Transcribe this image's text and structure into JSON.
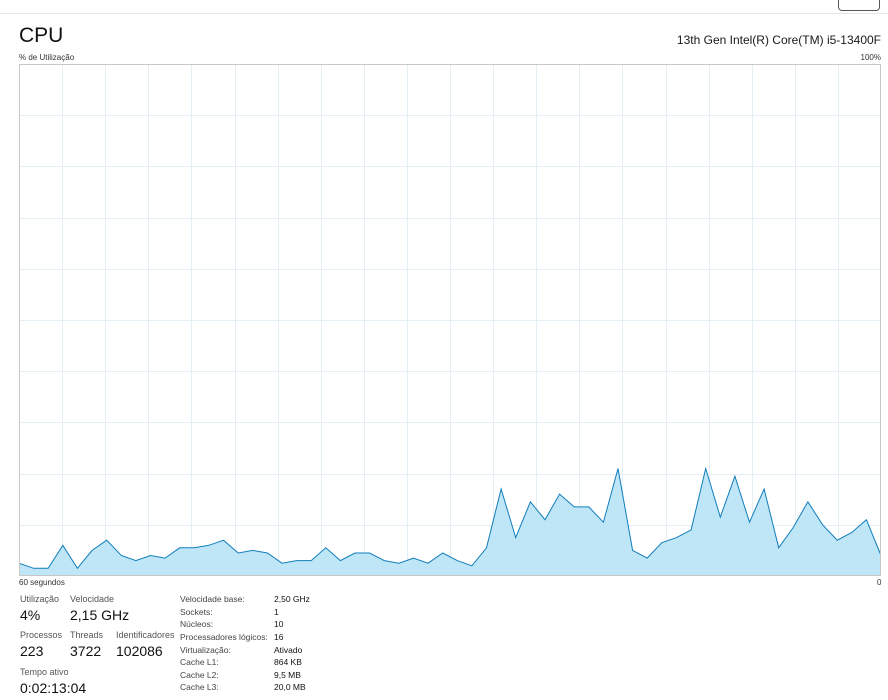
{
  "header": {
    "title": "CPU",
    "cpu_name": "13th Gen Intel(R) Core(TM) i5-13400F"
  },
  "graph": {
    "y_label": "% de Utilização",
    "y_max_label": "100%",
    "x_left_label": "60 segundos",
    "x_right_label": "0",
    "line_color": "#117dbb",
    "fill_color": "#bfe6f7",
    "grid_color": "#e3eef5",
    "border_color": "#c7c7c7"
  },
  "chart_data": {
    "type": "area",
    "ylim": [
      0,
      100
    ],
    "values": [
      2.5,
      1.5,
      1.5,
      6,
      1.5,
      5,
      7,
      4,
      3,
      4,
      3.5,
      5.5,
      5.5,
      6,
      7,
      4.5,
      5,
      4.5,
      2.5,
      3,
      3,
      5.5,
      3,
      4.5,
      4.5,
      3,
      2.5,
      3.5,
      2.5,
      4.5,
      3,
      2,
      5.5,
      17,
      7.5,
      14.5,
      11,
      16,
      13.5,
      13.5,
      10.5,
      21,
      5,
      3.5,
      6.5,
      7.5,
      9,
      21,
      11.5,
      19.5,
      10.5,
      17,
      5.5,
      9.5,
      14.5,
      10,
      7,
      8.5,
      11,
      4
    ]
  },
  "stats": {
    "utilizacao": {
      "label": "Utilização",
      "value": "4%"
    },
    "velocidade": {
      "label": "Velocidade",
      "value": "2,15 GHz"
    },
    "processos": {
      "label": "Processos",
      "value": "223"
    },
    "threads": {
      "label": "Threads",
      "value": "3722"
    },
    "identificadores": {
      "label": "Identificadores",
      "value": "102086"
    },
    "tempo_ativo": {
      "label": "Tempo ativo",
      "value": "0:02:13:04"
    }
  },
  "info": [
    {
      "label": "Velocidade base:",
      "value": "2,50 GHz"
    },
    {
      "label": "Sockets:",
      "value": "1"
    },
    {
      "label": "Núcleos:",
      "value": "10"
    },
    {
      "label": "Processadores lógicos:",
      "value": "16"
    },
    {
      "label": "Virtualização:",
      "value": "Ativado"
    },
    {
      "label": "Cache L1:",
      "value": "864 KB"
    },
    {
      "label": "Cache L2:",
      "value": "9,5 MB"
    },
    {
      "label": "Cache L3:",
      "value": "20,0 MB"
    }
  ]
}
